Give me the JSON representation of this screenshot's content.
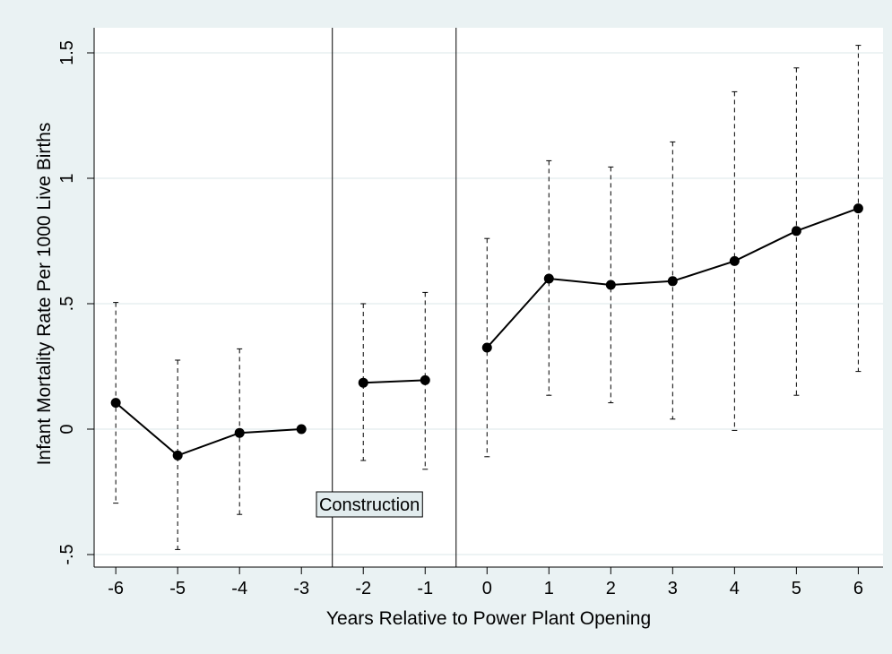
{
  "chart_data": {
    "type": "line",
    "title": "",
    "xlabel": "Years Relative to Power Plant Opening",
    "ylabel": "Infant Mortality Rate Per 1000 Live Births",
    "xlim": [
      -6.35,
      6.4
    ],
    "ylim": [
      -0.55,
      1.6
    ],
    "xticks": [
      -6,
      -5,
      -4,
      -3,
      -2,
      -1,
      0,
      1,
      2,
      3,
      4,
      5,
      6
    ],
    "xtick_labels": [
      "-6",
      "-5",
      "-4",
      "-3",
      "-2",
      "-1",
      "0",
      "1",
      "2",
      "3",
      "4",
      "5",
      "6"
    ],
    "yticks": [
      -0.5,
      0,
      0.5,
      1,
      1.5
    ],
    "ytick_labels": [
      "-.5",
      "0",
      ".5",
      "1",
      "1.5"
    ],
    "grid": "horizontal",
    "vertical_lines_x": [
      -2.5,
      -0.5
    ],
    "annotation": {
      "text": "Construction",
      "x": -1.9,
      "y": -0.3
    },
    "segments": [
      [
        {
          "x": -6,
          "y": 0.105,
          "ci_low": -0.295,
          "ci_high": 0.505
        },
        {
          "x": -5,
          "y": -0.105,
          "ci_low": -0.48,
          "ci_high": 0.275
        },
        {
          "x": -4,
          "y": -0.015,
          "ci_low": -0.34,
          "ci_high": 0.32
        },
        {
          "x": -3,
          "y": 0.0,
          "ci_low": null,
          "ci_high": null
        }
      ],
      [
        {
          "x": -2,
          "y": 0.185,
          "ci_low": -0.125,
          "ci_high": 0.5
        },
        {
          "x": -1,
          "y": 0.195,
          "ci_low": -0.16,
          "ci_high": 0.545
        }
      ],
      [
        {
          "x": 0,
          "y": 0.325,
          "ci_low": -0.11,
          "ci_high": 0.76
        },
        {
          "x": 1,
          "y": 0.6,
          "ci_low": 0.135,
          "ci_high": 1.07
        },
        {
          "x": 2,
          "y": 0.575,
          "ci_low": 0.105,
          "ci_high": 1.045
        },
        {
          "x": 3,
          "y": 0.59,
          "ci_low": 0.04,
          "ci_high": 1.145
        },
        {
          "x": 4,
          "y": 0.67,
          "ci_low": -0.005,
          "ci_high": 1.345
        },
        {
          "x": 5,
          "y": 0.79,
          "ci_low": 0.135,
          "ci_high": 1.44
        },
        {
          "x": 6,
          "y": 0.88,
          "ci_low": 0.23,
          "ci_high": 1.53
        }
      ]
    ],
    "colors": {
      "outer_background": "#eaf2f3",
      "plot_background": "#ffffff",
      "grid": "#e2ecee",
      "line": "#000000",
      "annotation_fill": "#e2ecee"
    }
  }
}
